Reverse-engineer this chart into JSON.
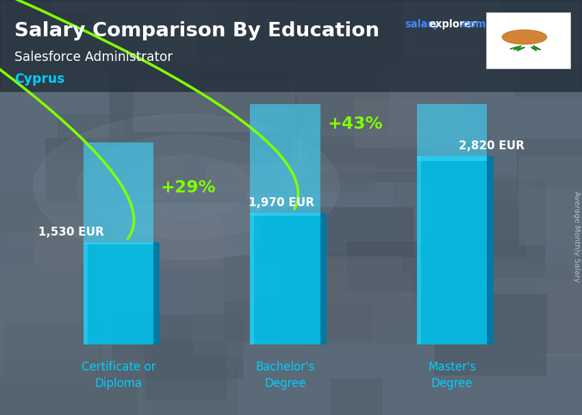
{
  "title": "Salary Comparison By Education",
  "subtitle": "Salesforce Administrator",
  "country": "Cyprus",
  "categories": [
    "Certificate or\nDiploma",
    "Bachelor's\nDegree",
    "Master's\nDegree"
  ],
  "values": [
    1530,
    1970,
    2820
  ],
  "value_labels": [
    "1,530 EUR",
    "1,970 EUR",
    "2,820 EUR"
  ],
  "pct_labels": [
    "+29%",
    "+43%"
  ],
  "bar_color_main": "#00C0E8",
  "bar_color_side": "#007AA8",
  "bar_color_top": "#40D8FF",
  "bg_color": "#5a6a78",
  "title_color": "#FFFFFF",
  "subtitle_color": "#FFFFFF",
  "country_color": "#00CFFF",
  "label_color_salary": "#FFFFFF",
  "label_color_pct": "#80FF00",
  "arrow_color": "#80FF00",
  "cat_label_color": "#00CFFF",
  "ylabel": "Average Monthly Salary",
  "ylim": [
    0,
    3600
  ],
  "bar_width": 0.42,
  "figsize": [
    8.5,
    6.06
  ],
  "dpi": 100
}
